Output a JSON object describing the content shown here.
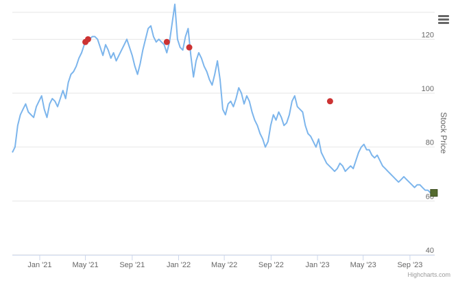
{
  "chart_data": {
    "type": "line",
    "title": "",
    "xlabel": "",
    "ylabel": "Stock Price",
    "x_range": [
      "2020-10-21",
      "2023-11-05"
    ],
    "ylim": [
      40,
      130
    ],
    "y_ticks": [
      40,
      60,
      80,
      100,
      120
    ],
    "grid": true,
    "y_axis_side": "right",
    "x_ticks": [
      {
        "date": "2021-01-01",
        "label": "Jan '21"
      },
      {
        "date": "2021-05-01",
        "label": "May '21"
      },
      {
        "date": "2021-09-01",
        "label": "Sep '21"
      },
      {
        "date": "2022-01-01",
        "label": "Jan '22"
      },
      {
        "date": "2022-05-01",
        "label": "May '22"
      },
      {
        "date": "2022-09-01",
        "label": "Sep '22"
      },
      {
        "date": "2023-01-01",
        "label": "Jan '23"
      },
      {
        "date": "2023-05-01",
        "label": "May '23"
      },
      {
        "date": "2023-09-01",
        "label": "Sep '23"
      }
    ],
    "series": [
      {
        "color": "#7cb5ec",
        "points": [
          [
            "2020-10-21",
            78
          ],
          [
            "2020-10-28",
            80
          ],
          [
            "2020-11-04",
            88
          ],
          [
            "2020-11-11",
            92
          ],
          [
            "2020-11-18",
            94
          ],
          [
            "2020-11-25",
            96
          ],
          [
            "2020-12-02",
            93
          ],
          [
            "2020-12-09",
            92
          ],
          [
            "2020-12-16",
            91
          ],
          [
            "2020-12-23",
            95
          ],
          [
            "2020-12-30",
            97
          ],
          [
            "2021-01-06",
            99
          ],
          [
            "2021-01-13",
            94
          ],
          [
            "2021-01-20",
            91
          ],
          [
            "2021-01-27",
            96
          ],
          [
            "2021-02-03",
            98
          ],
          [
            "2021-02-10",
            97
          ],
          [
            "2021-02-17",
            95
          ],
          [
            "2021-02-24",
            98
          ],
          [
            "2021-03-03",
            101
          ],
          [
            "2021-03-10",
            98
          ],
          [
            "2021-03-17",
            104
          ],
          [
            "2021-03-24",
            107
          ],
          [
            "2021-03-31",
            108
          ],
          [
            "2021-04-07",
            110
          ],
          [
            "2021-04-14",
            113
          ],
          [
            "2021-04-21",
            115
          ],
          [
            "2021-04-28",
            118
          ],
          [
            "2021-05-05",
            119
          ],
          [
            "2021-05-12",
            120
          ],
          [
            "2021-05-19",
            121
          ],
          [
            "2021-05-26",
            121
          ],
          [
            "2021-06-02",
            120
          ],
          [
            "2021-06-09",
            117
          ],
          [
            "2021-06-16",
            114
          ],
          [
            "2021-06-23",
            118
          ],
          [
            "2021-06-30",
            116
          ],
          [
            "2021-07-07",
            113
          ],
          [
            "2021-07-14",
            115
          ],
          [
            "2021-07-21",
            112
          ],
          [
            "2021-07-28",
            114
          ],
          [
            "2021-08-04",
            116
          ],
          [
            "2021-08-11",
            118
          ],
          [
            "2021-08-18",
            120
          ],
          [
            "2021-08-25",
            117
          ],
          [
            "2021-09-01",
            114
          ],
          [
            "2021-09-08",
            110
          ],
          [
            "2021-09-15",
            107
          ],
          [
            "2021-09-22",
            111
          ],
          [
            "2021-09-29",
            116
          ],
          [
            "2021-10-06",
            120
          ],
          [
            "2021-10-13",
            124
          ],
          [
            "2021-10-20",
            125
          ],
          [
            "2021-10-27",
            121
          ],
          [
            "2021-11-03",
            119
          ],
          [
            "2021-11-10",
            120
          ],
          [
            "2021-11-17",
            119
          ],
          [
            "2021-11-24",
            118
          ],
          [
            "2021-12-01",
            115
          ],
          [
            "2021-12-08",
            119
          ],
          [
            "2021-12-15",
            126
          ],
          [
            "2021-12-22",
            133
          ],
          [
            "2021-12-29",
            120
          ],
          [
            "2022-01-05",
            117
          ],
          [
            "2022-01-12",
            116
          ],
          [
            "2022-01-19",
            121
          ],
          [
            "2022-01-26",
            124
          ],
          [
            "2022-02-02",
            114
          ],
          [
            "2022-02-09",
            106
          ],
          [
            "2022-02-16",
            112
          ],
          [
            "2022-02-23",
            115
          ],
          [
            "2022-03-02",
            113
          ],
          [
            "2022-03-09",
            110
          ],
          [
            "2022-03-16",
            108
          ],
          [
            "2022-03-23",
            105
          ],
          [
            "2022-03-30",
            103
          ],
          [
            "2022-04-06",
            107
          ],
          [
            "2022-04-13",
            112
          ],
          [
            "2022-04-20",
            105
          ],
          [
            "2022-04-27",
            94
          ],
          [
            "2022-05-04",
            92
          ],
          [
            "2022-05-11",
            96
          ],
          [
            "2022-05-18",
            97
          ],
          [
            "2022-05-25",
            95
          ],
          [
            "2022-06-01",
            98
          ],
          [
            "2022-06-08",
            102
          ],
          [
            "2022-06-15",
            100
          ],
          [
            "2022-06-22",
            96
          ],
          [
            "2022-06-29",
            99
          ],
          [
            "2022-07-06",
            97
          ],
          [
            "2022-07-13",
            93
          ],
          [
            "2022-07-20",
            90
          ],
          [
            "2022-07-27",
            88
          ],
          [
            "2022-08-03",
            85
          ],
          [
            "2022-08-10",
            83
          ],
          [
            "2022-08-17",
            80
          ],
          [
            "2022-08-24",
            82
          ],
          [
            "2022-08-31",
            88
          ],
          [
            "2022-09-07",
            92
          ],
          [
            "2022-09-14",
            90
          ],
          [
            "2022-09-21",
            93
          ],
          [
            "2022-09-28",
            91
          ],
          [
            "2022-10-05",
            88
          ],
          [
            "2022-10-12",
            89
          ],
          [
            "2022-10-19",
            92
          ],
          [
            "2022-10-26",
            97
          ],
          [
            "2022-11-02",
            99
          ],
          [
            "2022-11-09",
            95
          ],
          [
            "2022-11-16",
            94
          ],
          [
            "2022-11-23",
            93
          ],
          [
            "2022-11-30",
            88
          ],
          [
            "2022-12-07",
            85
          ],
          [
            "2022-12-14",
            84
          ],
          [
            "2022-12-21",
            82
          ],
          [
            "2022-12-28",
            80
          ],
          [
            "2023-01-04",
            83
          ],
          [
            "2023-01-11",
            78
          ],
          [
            "2023-01-18",
            76
          ],
          [
            "2023-01-25",
            74
          ],
          [
            "2023-02-01",
            73
          ],
          [
            "2023-02-08",
            72
          ],
          [
            "2023-02-15",
            71
          ],
          [
            "2023-02-22",
            72
          ],
          [
            "2023-03-01",
            74
          ],
          [
            "2023-03-08",
            73
          ],
          [
            "2023-03-15",
            71
          ],
          [
            "2023-03-22",
            72
          ],
          [
            "2023-03-29",
            73
          ],
          [
            "2023-04-05",
            72
          ],
          [
            "2023-04-12",
            75
          ],
          [
            "2023-04-19",
            78
          ],
          [
            "2023-04-26",
            80
          ],
          [
            "2023-05-03",
            81
          ],
          [
            "2023-05-10",
            79
          ],
          [
            "2023-05-17",
            79
          ],
          [
            "2023-05-24",
            77
          ],
          [
            "2023-05-31",
            76
          ],
          [
            "2023-06-07",
            77
          ],
          [
            "2023-06-14",
            75
          ],
          [
            "2023-06-21",
            73
          ],
          [
            "2023-06-28",
            72
          ],
          [
            "2023-07-05",
            71
          ],
          [
            "2023-07-12",
            70
          ],
          [
            "2023-07-19",
            69
          ],
          [
            "2023-07-26",
            68
          ],
          [
            "2023-08-02",
            67
          ],
          [
            "2023-08-09",
            68
          ],
          [
            "2023-08-16",
            69
          ],
          [
            "2023-08-23",
            68
          ],
          [
            "2023-08-30",
            67
          ],
          [
            "2023-09-06",
            66
          ],
          [
            "2023-09-13",
            65
          ],
          [
            "2023-09-20",
            66
          ],
          [
            "2023-09-27",
            66
          ],
          [
            "2023-10-04",
            65
          ],
          [
            "2023-10-11",
            64
          ],
          [
            "2023-10-18",
            64
          ],
          [
            "2023-10-25",
            63
          ],
          [
            "2023-11-01",
            63
          ]
        ]
      }
    ],
    "markers": [
      {
        "date": "2021-05-01",
        "value": 119,
        "color": "#cc3333",
        "shape": "circle"
      },
      {
        "date": "2021-05-08",
        "value": 120,
        "color": "#cc3333",
        "shape": "circle"
      },
      {
        "date": "2021-12-01",
        "value": 119,
        "color": "#cc3333",
        "shape": "circle"
      },
      {
        "date": "2022-01-29",
        "value": 117,
        "color": "#cc3333",
        "shape": "circle"
      },
      {
        "date": "2023-02-03",
        "value": 97,
        "color": "#cc3333",
        "shape": "circle"
      },
      {
        "date": "2023-11-03",
        "value": 63,
        "color": "#556b2f",
        "shape": "square"
      }
    ]
  },
  "credits": "Highcharts.com",
  "menu_icon": "hamburger-menu-icon"
}
